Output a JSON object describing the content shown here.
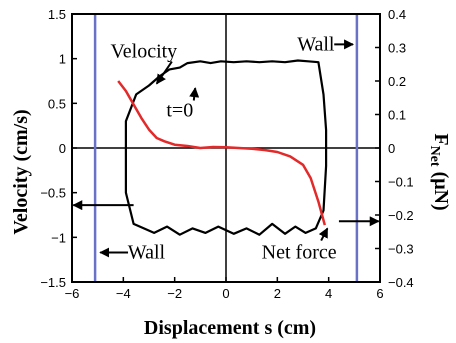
{
  "chart_data": {
    "type": "line",
    "xlabel": "Displacement s (cm)",
    "ylabel_left": "Velocity (cm/s)",
    "ylabel_right": {
      "main": "F",
      "sub": "Net",
      "unit": " (μN)"
    },
    "xlim": [
      -6,
      6
    ],
    "ylim_left": [
      -1.5,
      1.5
    ],
    "ylim_right": [
      -0.4,
      0.4
    ],
    "x_ticks": [
      -6,
      -4,
      -2,
      0,
      2,
      4,
      6
    ],
    "x_tick_labels": [
      "−6",
      "−4",
      "−2",
      "0",
      "2",
      "4",
      "6"
    ],
    "y_left_ticks": [
      -1.5,
      -1,
      -0.5,
      0,
      0.5,
      1,
      1.5
    ],
    "y_left_tick_labels": [
      "−1.5",
      "−1",
      "−0.5",
      "0",
      "0.5",
      "1",
      "1.5"
    ],
    "y_right_ticks": [
      -0.4,
      -0.3,
      -0.2,
      -0.1,
      0,
      0.1,
      0.2,
      0.3,
      0.4
    ],
    "y_right_tick_labels": [
      "−0.4",
      "−0.3",
      "−0.2",
      "−0.1",
      "0",
      "0.1",
      "0.2",
      "0.3",
      "0.4"
    ],
    "walls_x": [
      -5.1,
      5.1
    ],
    "series": [
      {
        "name": "Velocity",
        "axis": "left",
        "color": "#000000",
        "x": [
          -3.9,
          -3.9,
          -3.5,
          -3.0,
          -2.6,
          -2.2,
          -1.8,
          -1.5,
          -1.0,
          -0.6,
          -0.2,
          0.3,
          0.8,
          1.3,
          1.8,
          2.3,
          2.8,
          3.2,
          3.6,
          3.8,
          3.9,
          3.9,
          3.8,
          3.5,
          3.1,
          2.7,
          2.3,
          1.8,
          1.3,
          0.8,
          0.3,
          -0.3,
          -0.8,
          -1.3,
          -1.8,
          -2.3,
          -2.8,
          -3.2,
          -3.6,
          -3.9
        ],
        "y": [
          0.0,
          0.3,
          0.6,
          0.7,
          0.8,
          0.88,
          0.9,
          0.95,
          0.97,
          0.95,
          0.97,
          0.96,
          0.97,
          0.96,
          0.97,
          0.96,
          0.98,
          0.97,
          0.96,
          0.6,
          0.2,
          -0.2,
          -0.7,
          -0.9,
          -0.95,
          -0.88,
          -0.96,
          -0.85,
          -0.97,
          -0.9,
          -0.96,
          -0.88,
          -0.95,
          -0.9,
          -0.97,
          -0.88,
          -0.95,
          -0.9,
          -0.85,
          -0.5
        ]
      },
      {
        "name": "Net force",
        "axis": "right",
        "color": "#e32a2a",
        "x": [
          -4.2,
          -3.9,
          -3.6,
          -3.3,
          -3.0,
          -2.7,
          -2.4,
          -2.0,
          -1.5,
          -1.0,
          -0.5,
          0.0,
          0.5,
          1.0,
          1.5,
          2.0,
          2.5,
          3.0,
          3.3,
          3.6,
          3.85
        ],
        "y": [
          0.2,
          0.17,
          0.13,
          0.09,
          0.055,
          0.03,
          0.02,
          0.01,
          0.006,
          0.0,
          0.003,
          0.002,
          0.0,
          -0.002,
          -0.006,
          -0.012,
          -0.025,
          -0.05,
          -0.09,
          -0.16,
          -0.23
        ]
      }
    ],
    "annotations": [
      {
        "text": "Velocity",
        "x": -3.2,
        "y_left": 1.08,
        "arrow_to": [
          -2.7,
          0.72
        ]
      },
      {
        "text": "t=0",
        "x": -1.8,
        "y_left": 0.42,
        "arrow_to": [
          -1.2,
          0.67
        ]
      },
      {
        "text": "Wall",
        "x": 3.5,
        "y_left": 1.16,
        "arrow_to": [
          4.95,
          1.16
        ]
      },
      {
        "text": "Wall",
        "x": -3.1,
        "y_left": -1.17,
        "arrow_to": [
          -4.9,
          -1.17
        ]
      },
      {
        "text": "Net force",
        "x": 2.85,
        "y_left": -1.17,
        "arrow_to": [
          3.95,
          -0.9
        ]
      }
    ],
    "edge_arrows": [
      {
        "from": [
          -3.6,
          -0.64
        ],
        "to": [
          -5.95,
          -0.64
        ]
      },
      {
        "from": [
          4.4,
          -0.82
        ],
        "to": [
          5.95,
          -0.82
        ]
      }
    ]
  }
}
